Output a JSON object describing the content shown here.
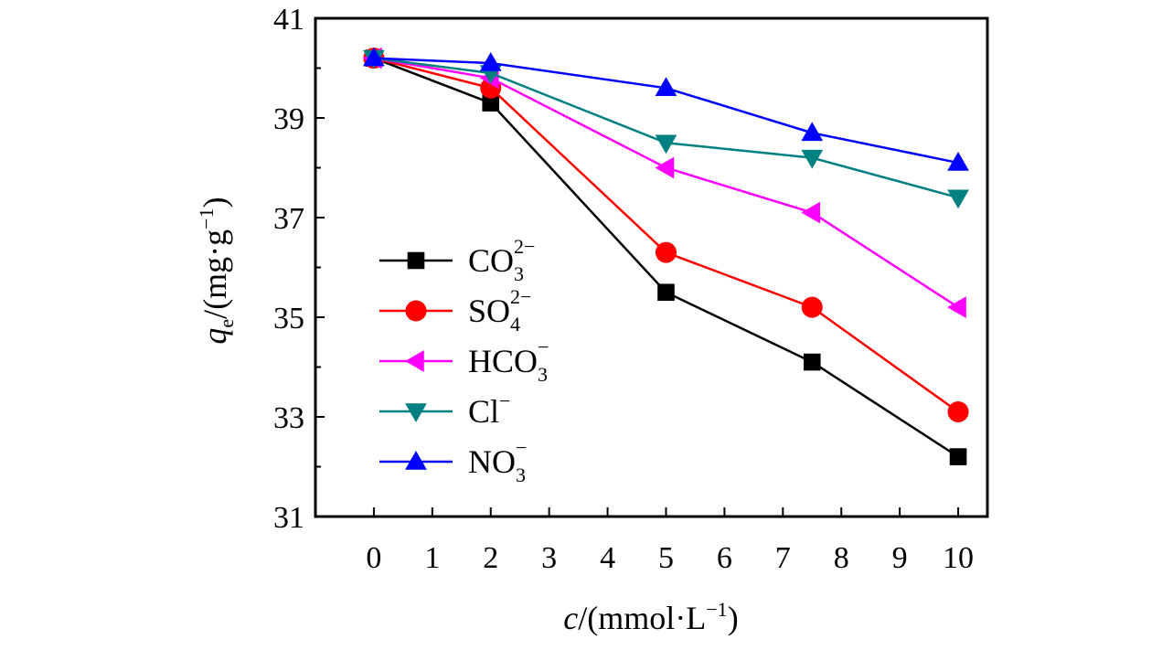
{
  "chart_data": {
    "type": "line",
    "x": [
      0,
      2,
      5,
      7.5,
      10
    ],
    "xlim": [
      -1,
      10.5
    ],
    "ylim": [
      31,
      41
    ],
    "xticks": [
      "0",
      "1",
      "2",
      "3",
      "4",
      "5",
      "6",
      "7",
      "8",
      "9",
      "10"
    ],
    "yticks": [
      "31",
      "33",
      "35",
      "37",
      "39",
      "41"
    ],
    "xlabel": {
      "italic": "c",
      "rest": "/(mmol·L",
      "sup": "−1",
      "close": ")"
    },
    "ylabel": {
      "italic": "q",
      "sub": "e",
      "rest": "/(mg·g",
      "sup": "−1",
      "close": ")"
    },
    "grid": false,
    "legend_position": "lower-left",
    "series": [
      {
        "name": "CO3 2−",
        "base": "CO",
        "sub": "3",
        "sup": "2−",
        "marker": "square",
        "color": "#000000",
        "values": [
          40.2,
          39.3,
          35.5,
          34.1,
          32.2
        ]
      },
      {
        "name": "SO4 2−",
        "base": "SO",
        "sub": "4",
        "sup": "2−",
        "marker": "circle",
        "color": "#ff0000",
        "values": [
          40.2,
          39.6,
          36.3,
          35.2,
          33.1
        ]
      },
      {
        "name": "HCO3 −",
        "base": "HCO",
        "sub": "3",
        "sup": "−",
        "marker": "triangle-left",
        "color": "#ff00ff",
        "values": [
          40.2,
          39.8,
          38.0,
          37.1,
          35.2
        ]
      },
      {
        "name": "Cl −",
        "base": "Cl",
        "sub": "",
        "sup": "−",
        "marker": "triangle-down",
        "color": "#008080",
        "values": [
          40.2,
          39.9,
          38.5,
          38.2,
          37.4
        ]
      },
      {
        "name": "NO3 −",
        "base": "NO",
        "sub": "3",
        "sup": "−",
        "marker": "triangle-up",
        "color": "#0000ff",
        "values": [
          40.2,
          40.1,
          39.6,
          38.7,
          38.1
        ]
      }
    ]
  }
}
